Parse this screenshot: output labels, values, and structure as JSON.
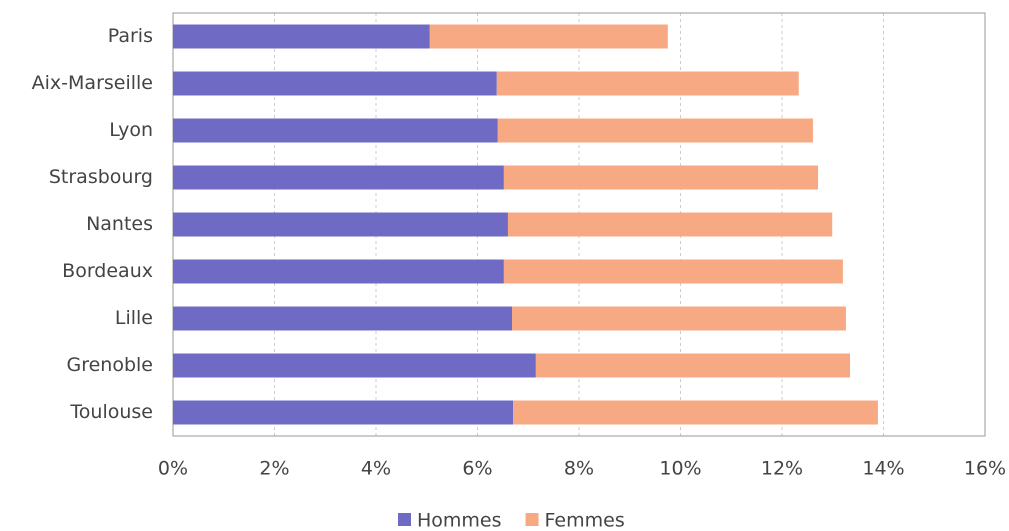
{
  "chart_data": {
    "type": "stacked-barh",
    "categories": [
      "Paris",
      "Aix-Marseille",
      "Lyon",
      "Strasbourg",
      "Nantes",
      "Bordeaux",
      "Lille",
      "Grenoble",
      "Toulouse"
    ],
    "series": [
      {
        "name": "Hommes",
        "color": "#6f6bc4",
        "values": [
          5.06,
          6.38,
          6.4,
          6.52,
          6.6,
          6.52,
          6.68,
          7.15,
          6.7
        ]
      },
      {
        "name": "Femmes",
        "color": "#f7a984",
        "values": [
          4.69,
          5.95,
          6.21,
          6.19,
          6.39,
          6.68,
          6.58,
          6.19,
          7.19
        ]
      }
    ],
    "xlim": [
      0,
      16
    ],
    "xticks": [
      {
        "value": 0,
        "label": "0%"
      },
      {
        "value": 2,
        "label": "2%"
      },
      {
        "value": 4,
        "label": "4%"
      },
      {
        "value": 6,
        "label": "6%"
      },
      {
        "value": 8,
        "label": "8%"
      },
      {
        "value": 10,
        "label": "10%"
      },
      {
        "value": 12,
        "label": "12%"
      },
      {
        "value": 14,
        "label": "14%"
      },
      {
        "value": 16,
        "label": "16%"
      }
    ],
    "grid": true,
    "legend": "bottom"
  }
}
